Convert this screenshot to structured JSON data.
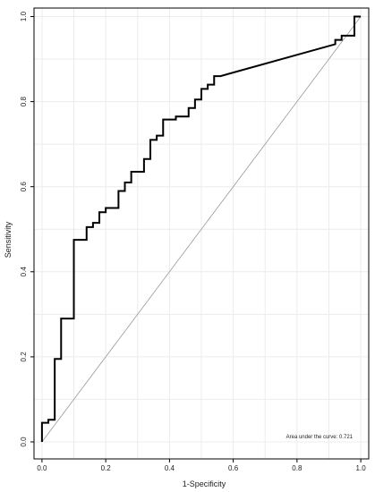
{
  "chart_data": {
    "type": "line",
    "title": "",
    "xlabel": "1-Specificity",
    "ylabel": "Sensitivity",
    "xlim": [
      -0.025,
      1.025
    ],
    "ylim": [
      -0.04,
      1.02
    ],
    "grid": true,
    "x_ticks": [
      0.0,
      0.2,
      0.4,
      0.6,
      0.8,
      1.0
    ],
    "x_tick_labels": [
      "0.0",
      "0.2",
      "0.4",
      "0.6",
      "0.8",
      "1.0"
    ],
    "y_ticks": [
      0.0,
      0.2,
      0.4,
      0.6,
      0.8,
      1.0
    ],
    "y_tick_labels": [
      "0.0",
      "0.2",
      "0.4",
      "0.6",
      "0.8",
      "1.0"
    ],
    "annotation": "Area under the curve: 0.721",
    "reference_line": {
      "x": [
        0,
        1
      ],
      "y": [
        0,
        1
      ]
    },
    "series": [
      {
        "x": [
          0.0,
          0.0,
          0.02,
          0.02,
          0.04,
          0.04,
          0.06,
          0.06,
          0.1,
          0.1,
          0.14,
          0.14,
          0.16,
          0.16,
          0.18,
          0.18,
          0.2,
          0.2,
          0.24,
          0.24,
          0.26,
          0.26,
          0.28,
          0.28,
          0.32,
          0.32,
          0.34,
          0.34,
          0.36,
          0.36,
          0.38,
          0.38,
          0.42,
          0.42,
          0.46,
          0.46,
          0.48,
          0.48,
          0.5,
          0.5,
          0.52,
          0.52,
          0.54,
          0.54,
          0.56,
          0.92,
          0.92,
          0.94,
          0.94,
          0.98,
          0.98,
          1.0
        ],
        "y": [
          0.0,
          0.045,
          0.045,
          0.052,
          0.052,
          0.195,
          0.195,
          0.29,
          0.29,
          0.475,
          0.475,
          0.505,
          0.505,
          0.515,
          0.515,
          0.54,
          0.54,
          0.55,
          0.55,
          0.59,
          0.59,
          0.61,
          0.61,
          0.635,
          0.635,
          0.665,
          0.665,
          0.71,
          0.71,
          0.72,
          0.72,
          0.758,
          0.758,
          0.765,
          0.765,
          0.785,
          0.785,
          0.805,
          0.805,
          0.83,
          0.83,
          0.84,
          0.84,
          0.86,
          0.86,
          0.935,
          0.945,
          0.945,
          0.955,
          0.955,
          1.0,
          1.0
        ]
      }
    ]
  }
}
